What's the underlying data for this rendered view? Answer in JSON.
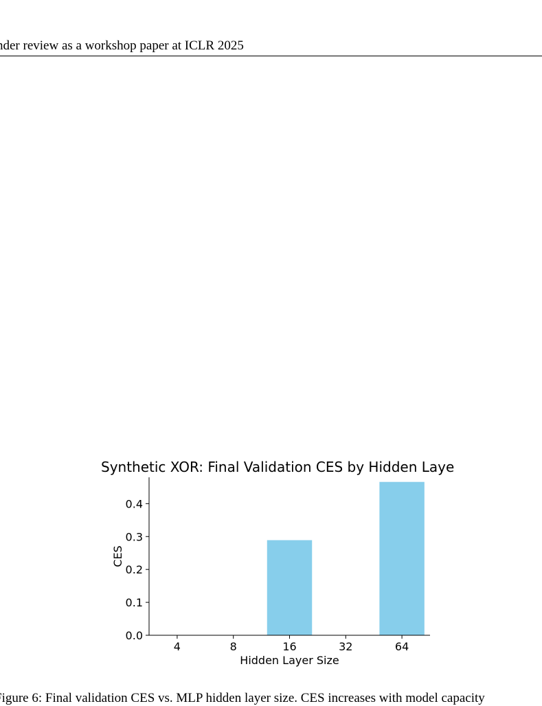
{
  "header": {
    "running_title": "nder review as a workshop paper at ICLR 2025"
  },
  "figure": {
    "caption": "Figure 6: Final validation CES vs. MLP hidden layer size. CES increases with model capacity"
  },
  "chart_data": {
    "type": "bar",
    "title": "Synthetic XOR: Final Validation CES by Hidden Laye",
    "xlabel": "Hidden Layer Size",
    "ylabel": "CES",
    "categories": [
      "4",
      "8",
      "16",
      "32",
      "64"
    ],
    "values": [
      0.0,
      0.0,
      0.289,
      0.0,
      0.466
    ],
    "ylim": [
      0,
      0.48
    ],
    "yticks": [
      "0.0",
      "0.1",
      "0.2",
      "0.3",
      "0.4"
    ],
    "bar_color": "#87ceeb",
    "grid": false
  }
}
